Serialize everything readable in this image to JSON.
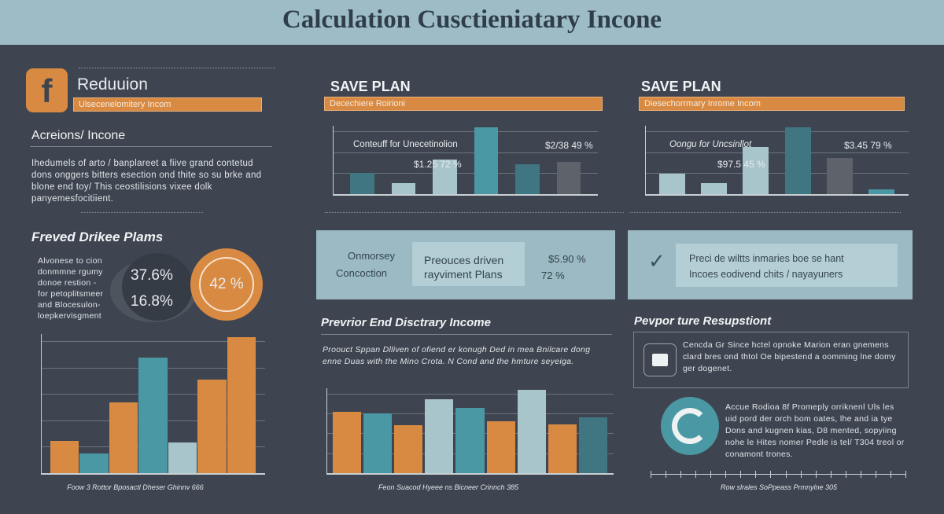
{
  "header": {
    "title": "Calculation Cusctieniatary Incone"
  },
  "left": {
    "logo_icon": "facebook-f-icon",
    "title": "Reduuion",
    "banner": "Ulsecenelomitery Incom",
    "subtitle": "Acreions/ Incone",
    "body": "Ihedumels of arto / banplareet a fiive grand contetud dons onggers bitters esection ond thite so su brke and blone end toy/ This ceostilisions vixee dolk panyemesfocitiient.",
    "section": "Freved Drikee Plams",
    "side_text": "Alvonese to cion donmmne rgumy donoe restion - for petoplitsmeer and Blocesulon- loepkervisgment",
    "pct1": "37.6%",
    "pct2": "16.8%",
    "pct_big": "42 %",
    "chart_caption": "Foow 3 Rottor Bposactl Dheser Ghinnv 666"
  },
  "mid": {
    "title": "SAVE PLAN",
    "banner": "Decechiere Roirioni",
    "chart_label": "Conteuff for Unecetinolion",
    "value1": "$1.25 72 %",
    "value2": "$2/38 49 %",
    "panel_left_1": "Onmorsey",
    "panel_left_2": "Concoction",
    "panel_box_1": "Preouces driven",
    "panel_box_2": "rayviment Plans",
    "panel_val_1": "$5.90 %",
    "panel_val_2": "72 %",
    "section": "Prevrior End Disctrary Income",
    "body": "Proouct Sppan Dlliven of ofiend er konugh Ded in mea Bnilcare dong enne Duas with the Mino Crota. N Cond and the hmture seyeiga.",
    "chart_caption": "Feon Suacod Hyeee ns Bicneer Crinnch 385"
  },
  "right": {
    "title": "SAVE PLAN",
    "banner": "Diesechorrmary Inrome Incom",
    "chart_label": "Oongu for Uncsinllot",
    "value1": "$97.5 45 %",
    "value2": "$3.45 79 %",
    "check_icon": "check-arrow-icon",
    "panel_box_1": "Preci de wiltts inmaries boe se hant",
    "panel_box_2": "Incoes eodivend chits / nayayuners",
    "section": "Pevpor ture Resupstiont",
    "card_icon": "calendar-chart-icon",
    "card_text": "Cencda Gr Since hctel opnoke Marion eran gnemens clard bres ond thtol Oe bipestend a oomming lne domy ger dogenet.",
    "ring_icon": "refresh-circle-icon",
    "ring_text": "Accue Rodioa 8f Promeply orriknenl Uls les uid pord der orch bom oates, lhe and ia tye Dons and kugnen kias, D8 mented, sopyiing nohe le Hites nomer Pedle is tel/ T304 treol or conamont trones.",
    "timeline_caption": "Row slrales SoPpeass Prmnylne 305"
  },
  "colors": {
    "background": "#3e4550",
    "header": "#9dbcc6",
    "orange": "#d98a42",
    "teal": "#4a98a4",
    "light": "#a8c5cb",
    "dark_teal": "#3f7682",
    "gray": "#5d626b"
  },
  "chart_data": [
    {
      "type": "bar",
      "id": "left-bottom",
      "values": [
        24,
        15,
        52,
        85,
        23,
        69,
        100
      ],
      "colors": [
        "orange",
        "teal",
        "orange",
        "teal",
        "light",
        "orange",
        "orange"
      ],
      "caption": "Foow 3 Rottor Bposactl Dheser Ghinnv 666"
    },
    {
      "type": "bar",
      "id": "mid-top",
      "values": [
        28,
        15,
        45,
        87,
        39,
        42
      ],
      "colors": [
        "dark_teal",
        "light",
        "light",
        "teal",
        "dark_teal",
        "gray"
      ]
    },
    {
      "type": "bar",
      "id": "right-top",
      "values": [
        28,
        16,
        64,
        90,
        49,
        7
      ],
      "colors": [
        "light",
        "light",
        "light",
        "dark_teal",
        "gray",
        "teal"
      ]
    },
    {
      "type": "bar",
      "id": "mid-bottom",
      "values": [
        68,
        66,
        53,
        82,
        72,
        58,
        92,
        54,
        62
      ],
      "colors": [
        "orange",
        "teal",
        "orange",
        "light",
        "teal",
        "orange",
        "light",
        "orange",
        "dark_teal"
      ],
      "caption": "Feon Suacod Hyeee ns Bicneer Crinnch 385"
    }
  ]
}
